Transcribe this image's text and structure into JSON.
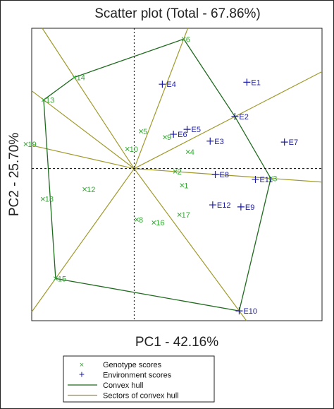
{
  "chart_data": {
    "type": "scatter",
    "title": "Scatter plot (Total - 67.86%)",
    "xlabel": "PC1 - 42.16%",
    "ylabel": "PC2 - 25.70%",
    "xlim": [
      -1.2,
      2.2
    ],
    "ylim": [
      -1.55,
      1.43
    ],
    "grid": false,
    "legend_position": "bottom",
    "colors": {
      "genotype": "#33aa33",
      "environment": "#1a1aa8",
      "hull": "#1e6b1e",
      "sectors": "#a09a2a",
      "axes": "#000000"
    },
    "series": [
      {
        "name": "Genotype scores",
        "marker": "x",
        "points": [
          {
            "label": "1",
            "x": 0.56,
            "y": -0.17
          },
          {
            "label": "2",
            "x": 0.48,
            "y": -0.03
          },
          {
            "label": "3",
            "x": 1.6,
            "y": -0.1
          },
          {
            "label": "4",
            "x": 0.63,
            "y": 0.17
          },
          {
            "label": "5",
            "x": 0.08,
            "y": 0.38
          },
          {
            "label": "6",
            "x": 0.58,
            "y": 1.32
          },
          {
            "label": "8",
            "x": 0.03,
            "y": -0.52
          },
          {
            "label": "9",
            "x": 0.36,
            "y": 0.32
          },
          {
            "label": "10",
            "x": -0.08,
            "y": 0.2
          },
          {
            "label": "12",
            "x": -0.58,
            "y": -0.21
          },
          {
            "label": "13",
            "x": -1.06,
            "y": 0.7
          },
          {
            "label": "14",
            "x": -0.7,
            "y": 0.93
          },
          {
            "label": "15",
            "x": -0.92,
            "y": -1.12
          },
          {
            "label": "16",
            "x": 0.23,
            "y": -0.55
          },
          {
            "label": "17",
            "x": 0.53,
            "y": -0.47
          },
          {
            "label": "18",
            "x": -1.07,
            "y": -0.31
          },
          {
            "label": "19",
            "x": -1.27,
            "y": 0.25
          }
        ]
      },
      {
        "name": "Environment scores",
        "marker": "+",
        "points": [
          {
            "label": "E1",
            "x": 1.32,
            "y": 0.88
          },
          {
            "label": "E2",
            "x": 1.18,
            "y": 0.53
          },
          {
            "label": "E3",
            "x": 0.89,
            "y": 0.28
          },
          {
            "label": "E4",
            "x": 0.33,
            "y": 0.86
          },
          {
            "label": "E5",
            "x": 0.62,
            "y": 0.4
          },
          {
            "label": "E6",
            "x": 0.46,
            "y": 0.35
          },
          {
            "label": "E7",
            "x": 1.76,
            "y": 0.27
          },
          {
            "label": "E8",
            "x": 0.95,
            "y": -0.06
          },
          {
            "label": "E9",
            "x": 1.25,
            "y": -0.39
          },
          {
            "label": "E10",
            "x": 1.23,
            "y": -1.45
          },
          {
            "label": "E11",
            "x": 1.42,
            "y": -0.11
          },
          {
            "label": "E12",
            "x": 0.92,
            "y": -0.37
          }
        ]
      }
    ],
    "convex_hull_order": [
      "6",
      "E2",
      "3",
      "E10",
      "15",
      "13",
      "14"
    ],
    "sector_ray_targets": [
      "6",
      "E2",
      "3",
      "E10",
      "15",
      "19",
      "13",
      "14"
    ],
    "legend": [
      {
        "symbol": "×",
        "text": "Genotype scores"
      },
      {
        "symbol": "+",
        "text": "Environment scores"
      },
      {
        "symbol": "line",
        "text": "Convex hull"
      },
      {
        "symbol": "line",
        "text": "Sectors of convex hull"
      }
    ]
  }
}
